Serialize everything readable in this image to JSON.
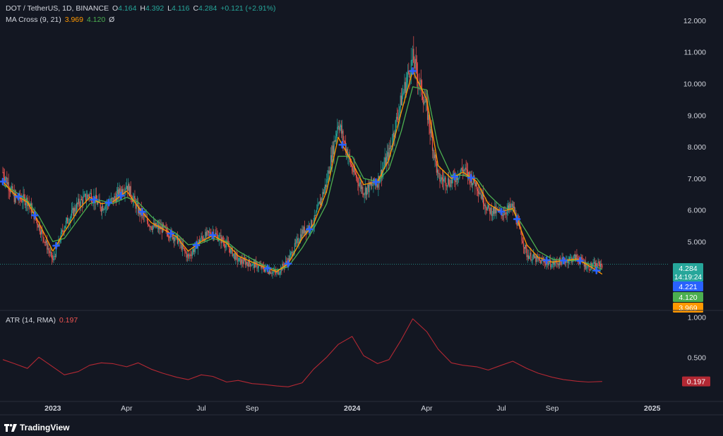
{
  "header": {
    "symbol": "DOT / TetherUS, 1D, BINANCE",
    "open_label": "O",
    "open": "4.164",
    "high_label": "H",
    "high": "4.392",
    "low_label": "L",
    "low": "4.116",
    "close_label": "C",
    "close": "4.284",
    "change": "+0.121 (+2.91%)"
  },
  "ma_legend": {
    "name": "MA Cross (9, 21)",
    "fast": "3.969",
    "slow": "4.120",
    "extra": "Ø"
  },
  "atr_legend": {
    "name": "ATR (14, RMA)",
    "value": "0.197"
  },
  "branding": {
    "name": "TradingView"
  },
  "colors": {
    "background": "#131722",
    "up": "#26a69a",
    "down": "#ef5350",
    "ma_fast": "#ff9800",
    "ma_slow": "#4caf50",
    "cross": "#2962ff",
    "atr": "#b22833",
    "text": "#d1d4dc"
  },
  "chart_data": [
    {
      "type": "line",
      "subtype": "candlestick-approx",
      "title": "DOT / TetherUS, 1D, BINANCE",
      "x": [
        "2022-11-01",
        "2022-11-15",
        "2022-12-01",
        "2022-12-15",
        "2023-01-01",
        "2023-01-15",
        "2023-02-01",
        "2023-02-15",
        "2023-03-01",
        "2023-03-15",
        "2023-04-01",
        "2023-04-15",
        "2023-05-01",
        "2023-05-15",
        "2023-06-01",
        "2023-06-15",
        "2023-07-01",
        "2023-07-15",
        "2023-08-01",
        "2023-08-15",
        "2023-09-01",
        "2023-09-15",
        "2023-10-01",
        "2023-10-15",
        "2023-11-01",
        "2023-11-15",
        "2023-12-01",
        "2023-12-15",
        "2024-01-01",
        "2024-01-15",
        "2024-02-01",
        "2024-02-15",
        "2024-03-01",
        "2024-03-15",
        "2024-04-01",
        "2024-04-15",
        "2024-05-01",
        "2024-05-15",
        "2024-06-01",
        "2024-06-15",
        "2024-07-01",
        "2024-07-15",
        "2024-08-01",
        "2024-08-15",
        "2024-09-01",
        "2024-09-15",
        "2024-10-01",
        "2024-10-15",
        "2024-11-01"
      ],
      "series": [
        {
          "name": "DOT / TetherUS",
          "values": [
            7.2,
            6.4,
            6.3,
            5.5,
            4.4,
            5.5,
            6.2,
            6.5,
            6.1,
            6.3,
            6.8,
            6.0,
            5.5,
            5.4,
            5.1,
            4.5,
            5.1,
            5.3,
            4.9,
            4.4,
            4.3,
            4.15,
            4.0,
            4.4,
            5.3,
            5.6,
            6.9,
            8.8,
            7.3,
            6.6,
            6.9,
            7.8,
            9.5,
            10.8,
            9.2,
            7.0,
            6.9,
            7.3,
            6.8,
            6.0,
            5.9,
            6.1,
            4.6,
            4.4,
            4.3,
            4.4,
            4.5,
            4.2,
            4.284
          ]
        },
        {
          "name": "MA 9",
          "values": [
            6.9,
            6.5,
            6.25,
            5.6,
            4.7,
            5.3,
            6.0,
            6.4,
            6.2,
            6.25,
            6.6,
            6.1,
            5.6,
            5.4,
            5.15,
            4.7,
            5.0,
            5.2,
            4.95,
            4.55,
            4.35,
            4.2,
            4.05,
            4.3,
            5.1,
            5.55,
            6.6,
            8.3,
            7.5,
            6.8,
            6.9,
            7.6,
            9.1,
            10.4,
            9.5,
            7.4,
            7.0,
            7.2,
            6.9,
            6.2,
            5.95,
            6.05,
            4.9,
            4.5,
            4.35,
            4.4,
            4.45,
            4.25,
            3.969
          ]
        },
        {
          "name": "MA 21",
          "values": [
            6.8,
            6.6,
            6.3,
            5.8,
            5.0,
            5.1,
            5.7,
            6.2,
            6.3,
            6.2,
            6.4,
            6.25,
            5.8,
            5.5,
            5.25,
            4.9,
            4.95,
            5.1,
            5.0,
            4.7,
            4.45,
            4.25,
            4.1,
            4.2,
            4.8,
            5.4,
            6.2,
            7.7,
            7.7,
            7.0,
            6.9,
            7.3,
            8.5,
            9.9,
            9.8,
            8.0,
            7.1,
            7.1,
            7.0,
            6.5,
            6.1,
            6.0,
            5.3,
            4.7,
            4.45,
            4.4,
            4.4,
            4.3,
            4.12
          ]
        }
      ],
      "ylim": [
        3.0,
        12.2
      ],
      "yticks": [
        "12.000",
        "11.000",
        "10.000",
        "9.000",
        "8.000",
        "7.000",
        "6.000",
        "5.000"
      ],
      "price_tags": [
        {
          "value": "4.284",
          "extra": "14:19:24",
          "color": "#26a69a"
        },
        {
          "value": "4.221",
          "color": "#2962ff"
        },
        {
          "value": "4.120",
          "color": "#4caf50"
        },
        {
          "value": "3.969",
          "color": "#ff9800"
        }
      ],
      "cross_markers": [
        "2022-11-01",
        "2022-11-20",
        "2022-12-10",
        "2023-01-05",
        "2023-02-20",
        "2023-03-10",
        "2023-03-25",
        "2023-04-20",
        "2023-05-25",
        "2023-06-25",
        "2023-07-15",
        "2023-09-20",
        "2023-10-15",
        "2023-11-10",
        "2023-12-20",
        "2024-01-30",
        "2024-03-15",
        "2024-05-05",
        "2024-05-25",
        "2024-07-01",
        "2024-07-20",
        "2024-08-25",
        "2024-09-15",
        "2024-10-05",
        "2024-10-25"
      ],
      "x_tick_labels": [
        "2023",
        "Apr",
        "Jul",
        "Sep",
        "2024",
        "Apr",
        "Jul",
        "Sep",
        "2025"
      ]
    },
    {
      "type": "line",
      "title": "ATR (14, RMA)",
      "x": [
        "2022-11-01",
        "2022-11-15",
        "2022-12-01",
        "2022-12-15",
        "2023-01-01",
        "2023-01-15",
        "2023-02-01",
        "2023-02-15",
        "2023-03-01",
        "2023-03-15",
        "2023-04-01",
        "2023-04-15",
        "2023-05-01",
        "2023-05-15",
        "2023-06-01",
        "2023-06-15",
        "2023-07-01",
        "2023-07-15",
        "2023-08-01",
        "2023-08-15",
        "2023-09-01",
        "2023-09-15",
        "2023-10-01",
        "2023-10-15",
        "2023-11-01",
        "2023-11-15",
        "2023-12-01",
        "2023-12-15",
        "2024-01-01",
        "2024-01-15",
        "2024-02-01",
        "2024-02-15",
        "2024-03-01",
        "2024-03-15",
        "2024-04-01",
        "2024-04-15",
        "2024-05-01",
        "2024-05-15",
        "2024-06-01",
        "2024-06-15",
        "2024-07-01",
        "2024-07-15",
        "2024-08-01",
        "2024-08-15",
        "2024-09-01",
        "2024-09-15",
        "2024-10-01",
        "2024-10-15",
        "2024-11-01"
      ],
      "series": [
        {
          "name": "ATR (14, RMA)",
          "values": [
            0.47,
            0.42,
            0.36,
            0.5,
            0.38,
            0.28,
            0.32,
            0.4,
            0.43,
            0.42,
            0.38,
            0.43,
            0.35,
            0.3,
            0.25,
            0.22,
            0.28,
            0.26,
            0.19,
            0.21,
            0.17,
            0.16,
            0.14,
            0.13,
            0.18,
            0.35,
            0.5,
            0.66,
            0.76,
            0.52,
            0.42,
            0.47,
            0.72,
            0.98,
            0.82,
            0.6,
            0.43,
            0.4,
            0.38,
            0.34,
            0.4,
            0.45,
            0.36,
            0.3,
            0.25,
            0.22,
            0.2,
            0.19,
            0.197
          ]
        }
      ],
      "ylim": [
        0.0,
        1.05
      ],
      "yticks": [
        "1.000",
        "0.500"
      ],
      "price_tags": [
        {
          "value": "0.197",
          "color": "#b22833"
        }
      ]
    }
  ]
}
